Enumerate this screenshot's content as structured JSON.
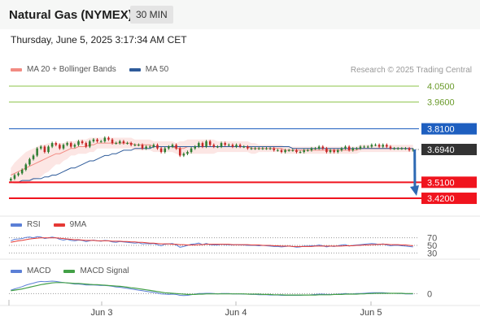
{
  "header": {
    "title": "Natural Gas (NYMEX)",
    "timeframe": "30 MIN",
    "datetime": "Thursday, June 5, 2025 3:17:34 AM CET"
  },
  "watermark": "Research © 2025 Trading Central",
  "legends": {
    "main": [
      {
        "label": "MA 20 + Bollinger Bands",
        "color": "#f28b82"
      },
      {
        "label": "MA 50",
        "color": "#2e5b9a"
      }
    ],
    "rsi": [
      {
        "label": "RSI",
        "color": "#5b7fd6"
      },
      {
        "label": "9MA",
        "color": "#e53935"
      }
    ],
    "macd": [
      {
        "label": "MACD",
        "color": "#5b7fd6"
      },
      {
        "label": "MACD Signal",
        "color": "#43a047"
      }
    ]
  },
  "colors": {
    "resistance": "#8bc34a",
    "pivot": "#1e5fc0",
    "support": "#f0141e",
    "current": "#333333",
    "arrow": "#2d69b3",
    "bull": "#2e7d32",
    "bear": "#c62828"
  },
  "chart_data": [
    {
      "type": "candlestick",
      "ylim": [
        3.37,
        4.1
      ],
      "x_ticks": [
        "Jun 3",
        "Jun 4",
        "Jun 5"
      ],
      "levels": [
        {
          "value": 4.05,
          "label": "4.0500",
          "kind": "resistance"
        },
        {
          "value": 3.96,
          "label": "3.9600",
          "kind": "resistance"
        },
        {
          "value": 3.81,
          "label": "3.8100",
          "kind": "pivot"
        },
        {
          "value": 3.694,
          "label": "3.6940",
          "kind": "current"
        },
        {
          "value": 3.51,
          "label": "3.5100",
          "kind": "support"
        },
        {
          "value": 3.42,
          "label": "3.4200",
          "kind": "support"
        }
      ],
      "close": [
        3.53,
        3.55,
        3.56,
        3.58,
        3.61,
        3.64,
        3.66,
        3.7,
        3.71,
        3.68,
        3.71,
        3.73,
        3.72,
        3.7,
        3.72,
        3.73,
        3.71,
        3.72,
        3.74,
        3.73,
        3.71,
        3.74,
        3.75,
        3.74,
        3.74,
        3.76,
        3.75,
        3.73,
        3.73,
        3.74,
        3.73,
        3.73,
        3.72,
        3.72,
        3.72,
        3.7,
        3.71,
        3.71,
        3.72,
        3.7,
        3.68,
        3.7,
        3.71,
        3.72,
        3.7,
        3.66,
        3.67,
        3.68,
        3.7,
        3.71,
        3.73,
        3.71,
        3.74,
        3.72,
        3.71,
        3.71,
        3.73,
        3.72,
        3.72,
        3.71,
        3.72,
        3.71,
        3.71,
        3.7,
        3.7,
        3.7,
        3.7,
        3.7,
        3.7,
        3.7,
        3.69,
        3.69,
        3.68,
        3.69,
        3.69,
        3.69,
        3.68,
        3.68,
        3.69,
        3.69,
        3.7,
        3.7,
        3.71,
        3.7,
        3.68,
        3.69,
        3.68,
        3.69,
        3.7,
        3.71,
        3.69,
        3.7,
        3.7,
        3.71,
        3.71,
        3.71,
        3.72,
        3.72,
        3.71,
        3.72,
        3.71,
        3.7,
        3.7,
        3.7,
        3.7,
        3.7,
        3.69,
        3.694
      ],
      "ma20": [
        3.55,
        3.56,
        3.57,
        3.58,
        3.59,
        3.6,
        3.61,
        3.62,
        3.63,
        3.64,
        3.65,
        3.66,
        3.67,
        3.67,
        3.68,
        3.69,
        3.7,
        3.7,
        3.71,
        3.71,
        3.71,
        3.72,
        3.72,
        3.73,
        3.73,
        3.73,
        3.73,
        3.73,
        3.73,
        3.73,
        3.73,
        3.73,
        3.73,
        3.72,
        3.72,
        3.72,
        3.72,
        3.72,
        3.71,
        3.71,
        3.71,
        3.71,
        3.71,
        3.71,
        3.7,
        3.7,
        3.7,
        3.71,
        3.71,
        3.71,
        3.71,
        3.71,
        3.71,
        3.71,
        3.71,
        3.71,
        3.71,
        3.71,
        3.71,
        3.71,
        3.71,
        3.71,
        3.71,
        3.71,
        3.7,
        3.7,
        3.7,
        3.7,
        3.7,
        3.7,
        3.7,
        3.7,
        3.7,
        3.69,
        3.69,
        3.69,
        3.69,
        3.69,
        3.69,
        3.69,
        3.69,
        3.69,
        3.69,
        3.69,
        3.69,
        3.69,
        3.69,
        3.69,
        3.69,
        3.69,
        3.69,
        3.69,
        3.69,
        3.7,
        3.7,
        3.7,
        3.7,
        3.7,
        3.7,
        3.7,
        3.7,
        3.7,
        3.7,
        3.7,
        3.7,
        3.7,
        3.7,
        3.7
      ],
      "band_width": [
        0.04,
        0.06,
        0.07,
        0.08,
        0.09,
        0.09,
        0.09,
        0.09,
        0.09,
        0.08,
        0.08,
        0.07,
        0.06,
        0.06,
        0.05,
        0.05,
        0.04,
        0.04,
        0.04,
        0.04,
        0.04,
        0.04,
        0.04,
        0.03,
        0.03,
        0.03,
        0.03,
        0.03,
        0.03,
        0.03,
        0.03,
        0.03,
        0.03,
        0.03,
        0.03,
        0.03,
        0.03,
        0.03,
        0.03,
        0.03,
        0.03,
        0.03,
        0.03,
        0.03,
        0.03,
        0.04,
        0.04,
        0.04,
        0.04,
        0.04,
        0.04,
        0.04,
        0.04,
        0.04,
        0.04,
        0.03,
        0.03,
        0.03,
        0.03,
        0.03,
        0.03,
        0.03,
        0.03,
        0.03,
        0.03,
        0.03,
        0.02,
        0.02,
        0.02,
        0.02,
        0.02,
        0.02,
        0.02,
        0.02,
        0.02,
        0.02,
        0.02,
        0.02,
        0.02,
        0.02,
        0.02,
        0.02,
        0.02,
        0.02,
        0.02,
        0.02,
        0.02,
        0.02,
        0.02,
        0.02,
        0.02,
        0.02,
        0.02,
        0.02,
        0.02,
        0.02,
        0.02,
        0.02,
        0.02,
        0.02,
        0.02,
        0.02,
        0.02,
        0.02,
        0.02,
        0.02,
        0.02,
        0.02
      ],
      "ma50": [
        3.51,
        3.51,
        3.51,
        3.52,
        3.52,
        3.52,
        3.53,
        3.53,
        3.53,
        3.54,
        3.54,
        3.55,
        3.55,
        3.56,
        3.57,
        3.58,
        3.59,
        3.59,
        3.6,
        3.61,
        3.62,
        3.63,
        3.63,
        3.64,
        3.65,
        3.66,
        3.66,
        3.67,
        3.67,
        3.68,
        3.69,
        3.69,
        3.69,
        3.7,
        3.7,
        3.7,
        3.7,
        3.7,
        3.71,
        3.71,
        3.71,
        3.71,
        3.71,
        3.71,
        3.71,
        3.71,
        3.71,
        3.71,
        3.71,
        3.71,
        3.71,
        3.71,
        3.71,
        3.71,
        3.71,
        3.71,
        3.71,
        3.71,
        3.71,
        3.71,
        3.71,
        3.71,
        3.71,
        3.71,
        3.71,
        3.71,
        3.71,
        3.71,
        3.71,
        3.71,
        3.71,
        3.71,
        3.71,
        3.71,
        3.71,
        3.7,
        3.7,
        3.7,
        3.7,
        3.7,
        3.7,
        3.7,
        3.7,
        3.7,
        3.7,
        3.7,
        3.7,
        3.7,
        3.7,
        3.7,
        3.7,
        3.7,
        3.7,
        3.7,
        3.7,
        3.7,
        3.7,
        3.7,
        3.7,
        3.7,
        3.7,
        3.7,
        3.7,
        3.7,
        3.7,
        3.7,
        3.7,
        3.7
      ],
      "projection": {
        "from": 3.694,
        "to": 3.42
      }
    },
    {
      "type": "line",
      "name": "RSI",
      "ylim": [
        20,
        80
      ],
      "y_ticks": [
        {
          "value": 70,
          "label": "70"
        },
        {
          "value": 50,
          "label": "50"
        },
        {
          "value": 30,
          "label": "30"
        }
      ],
      "rsi": [
        62,
        66,
        67,
        68,
        71,
        72,
        70,
        73,
        72,
        68,
        70,
        72,
        70,
        66,
        64,
        66,
        63,
        62,
        64,
        63,
        60,
        62,
        64,
        62,
        61,
        63,
        62,
        59,
        58,
        60,
        59,
        58,
        57,
        56,
        57,
        54,
        55,
        54,
        55,
        52,
        49,
        53,
        54,
        55,
        51,
        45,
        47,
        50,
        53,
        54,
        56,
        52,
        55,
        52,
        51,
        51,
        53,
        52,
        52,
        51,
        52,
        51,
        51,
        50,
        50,
        50,
        49,
        50,
        49,
        48,
        47,
        47,
        46,
        47,
        48,
        47,
        45,
        46,
        48,
        48,
        49,
        49,
        51,
        49,
        46,
        48,
        47,
        49,
        51,
        52,
        48,
        50,
        51,
        52,
        53,
        54,
        55,
        54,
        52,
        54,
        51,
        49,
        50,
        50,
        49,
        48,
        47,
        46
      ],
      "ma9": [
        58,
        60,
        62,
        63,
        65,
        67,
        68,
        69,
        70,
        70,
        70,
        70,
        70,
        69,
        68,
        67,
        66,
        65,
        65,
        64,
        63,
        63,
        63,
        62,
        62,
        62,
        62,
        61,
        61,
        61,
        60,
        60,
        59,
        59,
        58,
        58,
        57,
        56,
        56,
        55,
        54,
        54,
        54,
        53,
        53,
        52,
        52,
        51,
        51,
        51,
        52,
        52,
        53,
        53,
        53,
        53,
        53,
        53,
        53,
        52,
        52,
        52,
        52,
        52,
        51,
        51,
        51,
        50,
        50,
        50,
        49,
        49,
        48,
        48,
        48,
        47,
        47,
        47,
        47,
        47,
        47,
        48,
        48,
        48,
        48,
        48,
        48,
        48,
        48,
        49,
        49,
        49,
        50,
        50,
        51,
        51,
        52,
        52,
        53,
        53,
        53,
        52,
        52,
        52,
        51,
        51,
        50,
        49
      ]
    },
    {
      "type": "line",
      "name": "MACD",
      "ylim": [
        -0.03,
        0.06
      ],
      "y_ticks": [
        {
          "value": 0,
          "label": "0"
        }
      ],
      "macd": [
        0.012,
        0.016,
        0.02,
        0.024,
        0.029,
        0.033,
        0.036,
        0.04,
        0.042,
        0.041,
        0.042,
        0.043,
        0.042,
        0.04,
        0.038,
        0.037,
        0.035,
        0.033,
        0.033,
        0.032,
        0.03,
        0.03,
        0.03,
        0.029,
        0.028,
        0.028,
        0.027,
        0.025,
        0.023,
        0.022,
        0.02,
        0.018,
        0.016,
        0.014,
        0.012,
        0.01,
        0.008,
        0.006,
        0.004,
        0.002,
        -0.001,
        -0.002,
        -0.003,
        -0.002,
        -0.003,
        -0.006,
        -0.007,
        -0.006,
        -0.004,
        -0.002,
        0.0,
        0.0,
        0.001,
        0.001,
        0.0,
        -0.001,
        0.0,
        0.0,
        0.0,
        -0.001,
        -0.001,
        -0.001,
        -0.002,
        -0.002,
        -0.003,
        -0.003,
        -0.004,
        -0.004,
        -0.004,
        -0.005,
        -0.005,
        -0.005,
        -0.006,
        -0.006,
        -0.006,
        -0.006,
        -0.006,
        -0.006,
        -0.005,
        -0.005,
        -0.004,
        -0.003,
        -0.002,
        -0.002,
        -0.003,
        -0.003,
        -0.003,
        -0.002,
        -0.001,
        0.0,
        -0.001,
        -0.001,
        0.0,
        0.0,
        0.001,
        0.002,
        0.003,
        0.003,
        0.003,
        0.003,
        0.002,
        0.001,
        0.001,
        0.0,
        0.0,
        -0.001,
        -0.001,
        -0.001
      ],
      "signal": [
        0.01,
        0.012,
        0.014,
        0.016,
        0.019,
        0.022,
        0.025,
        0.028,
        0.031,
        0.033,
        0.035,
        0.037,
        0.038,
        0.038,
        0.038,
        0.037,
        0.036,
        0.035,
        0.035,
        0.034,
        0.033,
        0.032,
        0.031,
        0.031,
        0.03,
        0.029,
        0.028,
        0.027,
        0.026,
        0.025,
        0.024,
        0.022,
        0.02,
        0.019,
        0.017,
        0.015,
        0.013,
        0.011,
        0.009,
        0.007,
        0.005,
        0.003,
        0.002,
        0.001,
        0.0,
        -0.001,
        -0.002,
        -0.003,
        -0.003,
        -0.003,
        -0.002,
        -0.002,
        -0.001,
        -0.001,
        -0.001,
        -0.001,
        -0.001,
        -0.001,
        -0.001,
        -0.001,
        -0.001,
        -0.001,
        -0.001,
        -0.002,
        -0.002,
        -0.002,
        -0.002,
        -0.003,
        -0.003,
        -0.003,
        -0.004,
        -0.004,
        -0.004,
        -0.005,
        -0.005,
        -0.005,
        -0.005,
        -0.005,
        -0.005,
        -0.005,
        -0.005,
        -0.005,
        -0.004,
        -0.004,
        -0.004,
        -0.004,
        -0.003,
        -0.003,
        -0.003,
        -0.002,
        -0.002,
        -0.002,
        -0.002,
        -0.001,
        -0.001,
        0.0,
        0.0,
        0.001,
        0.001,
        0.001,
        0.001,
        0.001,
        0.001,
        0.001,
        0.001,
        0.0,
        0.0,
        0.0
      ]
    }
  ]
}
